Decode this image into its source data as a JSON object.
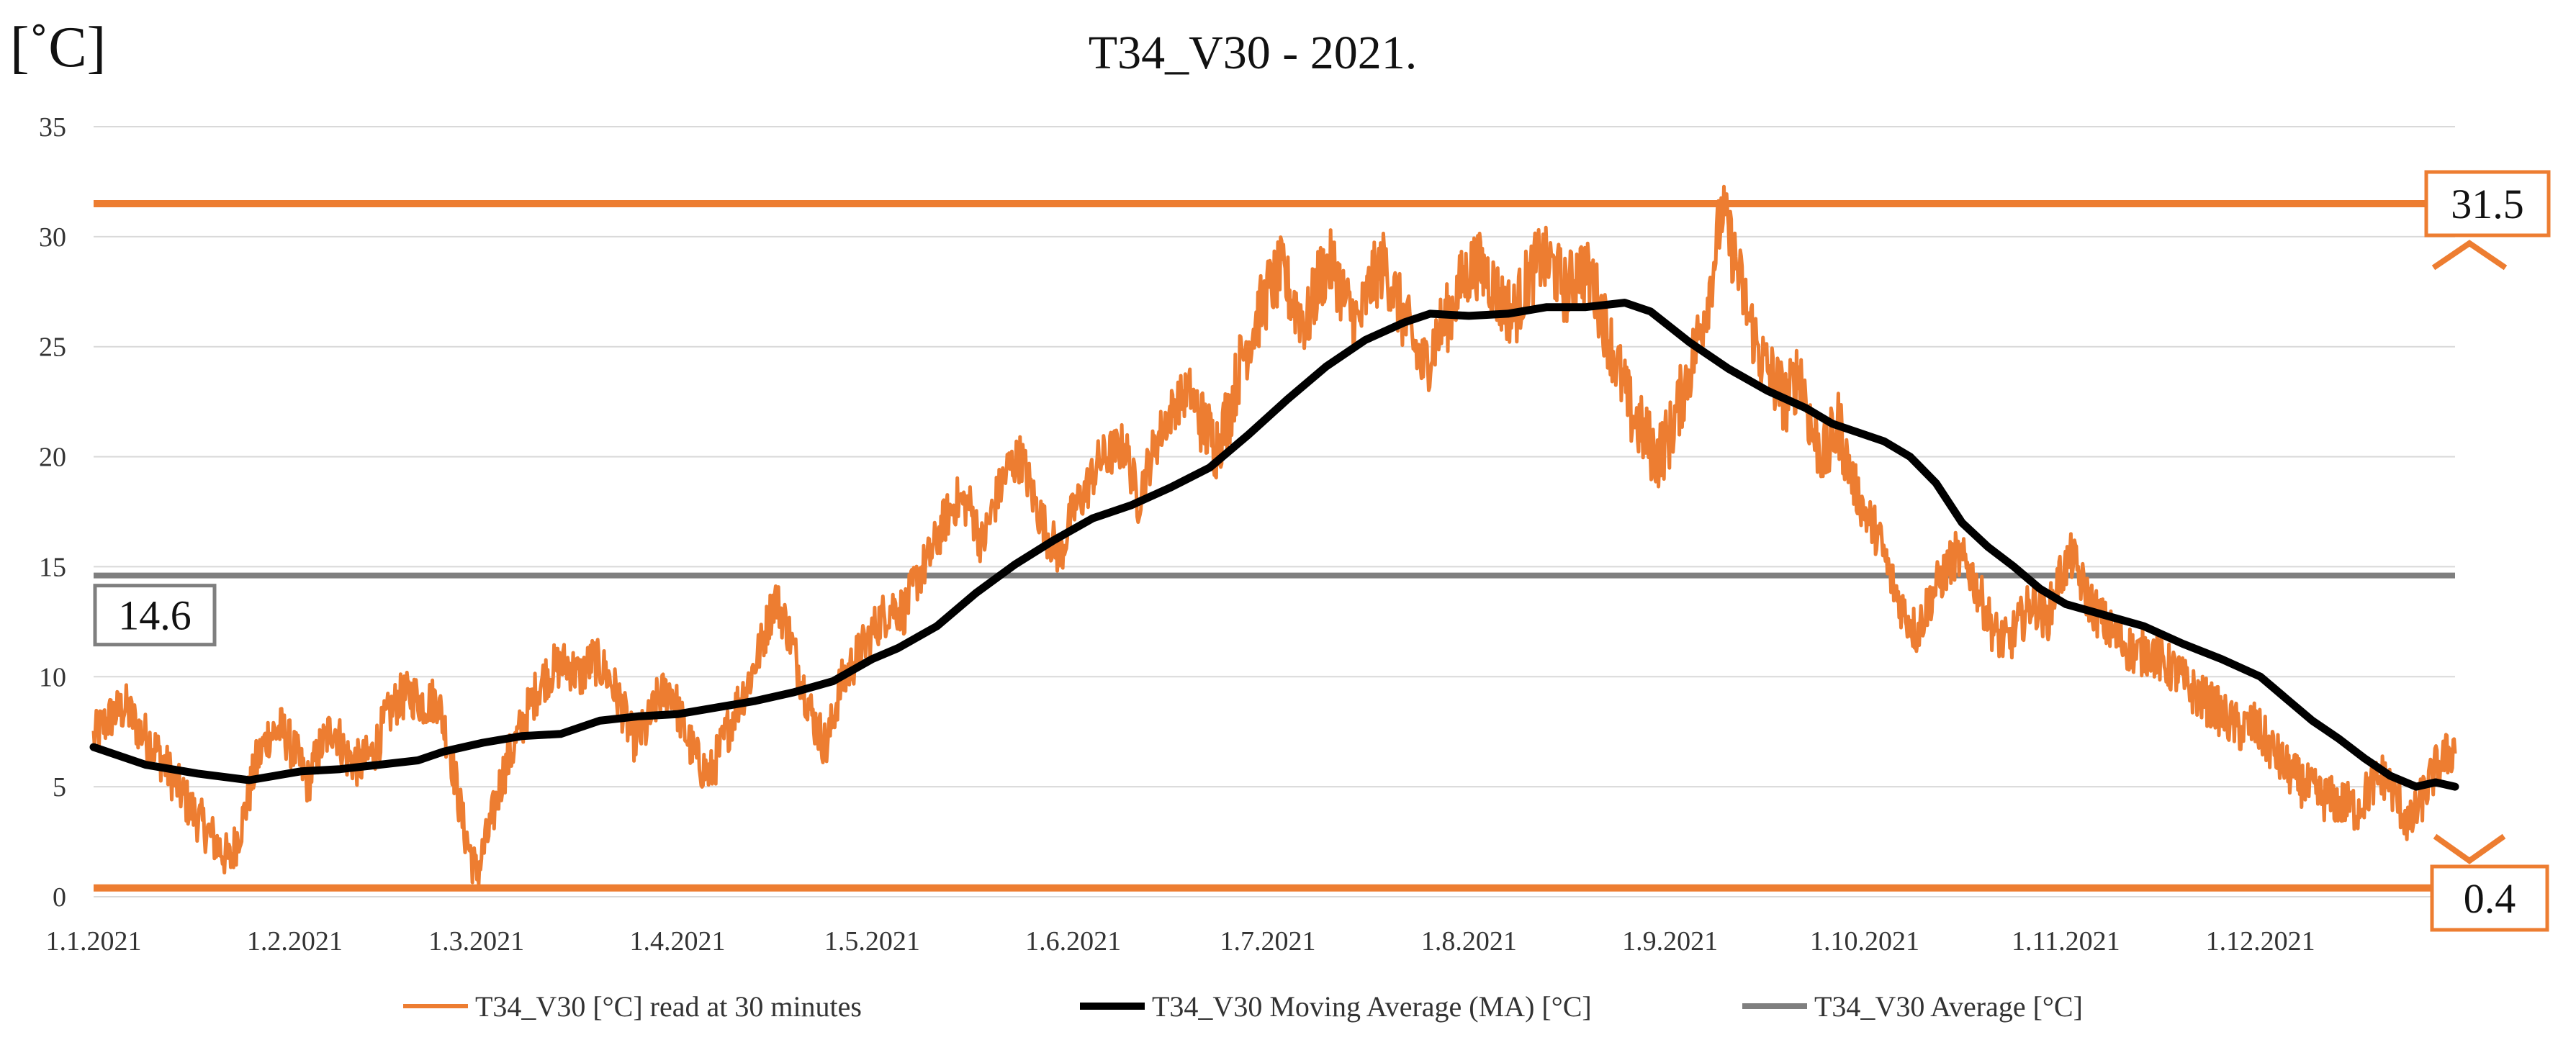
{
  "chart_data": {
    "type": "line",
    "title": "T34_V30 - 2021.",
    "ylabel": "[˚C]",
    "xlabel": "",
    "ylim": [
      0,
      35
    ],
    "yticks": [
      0,
      5,
      10,
      15,
      20,
      25,
      30,
      35
    ],
    "xlim": [
      0,
      364
    ],
    "xtick_labels": [
      "1.1.2021",
      "1.2.2021",
      "1.3.2021",
      "1.4.2021",
      "1.5.2021",
      "1.6.2021",
      "1.7.2021",
      "1.8.2021",
      "1.9.2021",
      "1.10.2021",
      "1.11.2021",
      "1.12.2021"
    ],
    "xtick_days": [
      0,
      31,
      59,
      90,
      120,
      151,
      181,
      212,
      243,
      273,
      304,
      334
    ],
    "grid": true,
    "legend_position": "bottom",
    "colors": {
      "raw": "#ED7D31",
      "ma": "#000000",
      "avg": "#7F7F7F",
      "grid": "#D9D9D9"
    },
    "series": [
      {
        "name": "T34_V30 [°C] read at 30 minutes",
        "kind": "raw",
        "points": [
          [
            0,
            7.2
          ],
          [
            1,
            7.6
          ],
          [
            3,
            8.3
          ],
          [
            5,
            8.6
          ],
          [
            7,
            7.6
          ],
          [
            9,
            7.0
          ],
          [
            11,
            6.0
          ],
          [
            13,
            5.0
          ],
          [
            15,
            4.0
          ],
          [
            17,
            3.2
          ],
          [
            19,
            2.4
          ],
          [
            21,
            1.6
          ],
          [
            23,
            3.5
          ],
          [
            25,
            6.0
          ],
          [
            27,
            7.4
          ],
          [
            29,
            7.6
          ],
          [
            31,
            6.6
          ],
          [
            33,
            5.2
          ],
          [
            35,
            6.8
          ],
          [
            37,
            7.8
          ],
          [
            39,
            6.4
          ],
          [
            41,
            6.0
          ],
          [
            43,
            6.5
          ],
          [
            45,
            8.0
          ],
          [
            47,
            9.0
          ],
          [
            49,
            9.2
          ],
          [
            51,
            8.8
          ],
          [
            53,
            9.0
          ],
          [
            55,
            6.6
          ],
          [
            57,
            3.2
          ],
          [
            59,
            1.0
          ],
          [
            61,
            3.0
          ],
          [
            63,
            5.5
          ],
          [
            65,
            7.0
          ],
          [
            67,
            8.5
          ],
          [
            69,
            9.8
          ],
          [
            71,
            10.4
          ],
          [
            73,
            10.6
          ],
          [
            75,
            10.0
          ],
          [
            77,
            10.8
          ],
          [
            79,
            10.2
          ],
          [
            81,
            9.0
          ],
          [
            83,
            7.2
          ],
          [
            85,
            7.5
          ],
          [
            87,
            9.0
          ],
          [
            89,
            9.5
          ],
          [
            91,
            7.6
          ],
          [
            93,
            6.2
          ],
          [
            95,
            5.5
          ],
          [
            97,
            7.0
          ],
          [
            99,
            8.6
          ],
          [
            101,
            9.8
          ],
          [
            103,
            11.5
          ],
          [
            105,
            13.6
          ],
          [
            107,
            12.2
          ],
          [
            109,
            10.0
          ],
          [
            111,
            8.0
          ],
          [
            113,
            6.8
          ],
          [
            115,
            9.5
          ],
          [
            117,
            10.6
          ],
          [
            119,
            11.5
          ],
          [
            121,
            12.5
          ],
          [
            123,
            13.2
          ],
          [
            125,
            13.0
          ],
          [
            127,
            14.5
          ],
          [
            129,
            15.5
          ],
          [
            131,
            17.0
          ],
          [
            133,
            18.0
          ],
          [
            135,
            17.8
          ],
          [
            137,
            16.0
          ],
          [
            139,
            18.0
          ],
          [
            141,
            19.5
          ],
          [
            143,
            20.0
          ],
          [
            145,
            18.0
          ],
          [
            147,
            16.5
          ],
          [
            149,
            15.5
          ],
          [
            151,
            17.5
          ],
          [
            153,
            18.5
          ],
          [
            155,
            19.8
          ],
          [
            157,
            20.2
          ],
          [
            159,
            20.5
          ],
          [
            161,
            18.0
          ],
          [
            163,
            20.0
          ],
          [
            165,
            21.5
          ],
          [
            167,
            22.5
          ],
          [
            169,
            23.0
          ],
          [
            171,
            21.5
          ],
          [
            173,
            20.5
          ],
          [
            175,
            22.0
          ],
          [
            177,
            24.5
          ],
          [
            179,
            26.0
          ],
          [
            181,
            27.5
          ],
          [
            183,
            28.4
          ],
          [
            185,
            27.0
          ],
          [
            187,
            26.0
          ],
          [
            189,
            28.2
          ],
          [
            191,
            28.8
          ],
          [
            193,
            27.0
          ],
          [
            195,
            26.0
          ],
          [
            197,
            28.0
          ],
          [
            199,
            28.8
          ],
          [
            201,
            27.0
          ],
          [
            203,
            25.5
          ],
          [
            205,
            24.0
          ],
          [
            207,
            25.5
          ],
          [
            209,
            26.5
          ],
          [
            211,
            28.0
          ],
          [
            213,
            28.8
          ],
          [
            215,
            28.2
          ],
          [
            217,
            27.0
          ],
          [
            219,
            26.5
          ],
          [
            221,
            28.0
          ],
          [
            223,
            29.0
          ],
          [
            225,
            28.6
          ],
          [
            227,
            27.5
          ],
          [
            229,
            28.6
          ],
          [
            231,
            28.0
          ],
          [
            233,
            26.0
          ],
          [
            235,
            24.0
          ],
          [
            237,
            22.0
          ],
          [
            239,
            21.0
          ],
          [
            241,
            20.0
          ],
          [
            243,
            21.0
          ],
          [
            245,
            23.0
          ],
          [
            247,
            25.0
          ],
          [
            249,
            27.5
          ],
          [
            251,
            31.2
          ],
          [
            253,
            29.0
          ],
          [
            255,
            26.5
          ],
          [
            257,
            24.5
          ],
          [
            259,
            23.5
          ],
          [
            261,
            22.5
          ],
          [
            263,
            24.0
          ],
          [
            265,
            21.0
          ],
          [
            267,
            20.0
          ],
          [
            269,
            21.5
          ],
          [
            271,
            19.0
          ],
          [
            273,
            17.5
          ],
          [
            275,
            16.5
          ],
          [
            277,
            14.5
          ],
          [
            279,
            13.0
          ],
          [
            281,
            12.0
          ],
          [
            283,
            13.5
          ],
          [
            285,
            14.6
          ],
          [
            287,
            15.5
          ],
          [
            289,
            15.0
          ],
          [
            291,
            13.5
          ],
          [
            293,
            12.0
          ],
          [
            295,
            11.5
          ],
          [
            297,
            12.5
          ],
          [
            299,
            13.5
          ],
          [
            301,
            12.5
          ],
          [
            303,
            14.5
          ],
          [
            305,
            15.5
          ],
          [
            307,
            13.8
          ],
          [
            309,
            12.8
          ],
          [
            311,
            12.0
          ],
          [
            313,
            11.5
          ],
          [
            315,
            11.0
          ],
          [
            317,
            11.2
          ],
          [
            319,
            10.6
          ],
          [
            321,
            10.2
          ],
          [
            323,
            9.5
          ],
          [
            325,
            9.0
          ],
          [
            327,
            8.6
          ],
          [
            329,
            8.0
          ],
          [
            331,
            7.6
          ],
          [
            333,
            7.8
          ],
          [
            335,
            7.0
          ],
          [
            337,
            6.2
          ],
          [
            339,
            5.5
          ],
          [
            341,
            5.0
          ],
          [
            343,
            4.6
          ],
          [
            345,
            4.4
          ],
          [
            347,
            4.2
          ],
          [
            349,
            4.0
          ],
          [
            351,
            5.0
          ],
          [
            353,
            5.5
          ],
          [
            355,
            4.5
          ],
          [
            357,
            3.2
          ],
          [
            359,
            4.5
          ],
          [
            361,
            5.8
          ],
          [
            363,
            6.5
          ],
          [
            364,
            6.8
          ]
        ]
      },
      {
        "name": "T34_V30 Moving Average (MA) [°C]",
        "kind": "ma",
        "points": [
          [
            0,
            6.8
          ],
          [
            8,
            6.0
          ],
          [
            16,
            5.6
          ],
          [
            24,
            5.3
          ],
          [
            32,
            5.7
          ],
          [
            38,
            5.8
          ],
          [
            44,
            6.0
          ],
          [
            50,
            6.2
          ],
          [
            54,
            6.6
          ],
          [
            60,
            7.0
          ],
          [
            66,
            7.3
          ],
          [
            72,
            7.4
          ],
          [
            78,
            8.0
          ],
          [
            84,
            8.2
          ],
          [
            90,
            8.3
          ],
          [
            96,
            8.6
          ],
          [
            102,
            8.9
          ],
          [
            108,
            9.3
          ],
          [
            114,
            9.8
          ],
          [
            120,
            10.8
          ],
          [
            124,
            11.3
          ],
          [
            130,
            12.3
          ],
          [
            136,
            13.8
          ],
          [
            142,
            15.1
          ],
          [
            148,
            16.2
          ],
          [
            154,
            17.2
          ],
          [
            160,
            17.8
          ],
          [
            166,
            18.6
          ],
          [
            172,
            19.5
          ],
          [
            178,
            21.0
          ],
          [
            184,
            22.6
          ],
          [
            190,
            24.1
          ],
          [
            196,
            25.3
          ],
          [
            202,
            26.1
          ],
          [
            206,
            26.5
          ],
          [
            212,
            26.4
          ],
          [
            218,
            26.5
          ],
          [
            224,
            26.8
          ],
          [
            230,
            26.8
          ],
          [
            236,
            27.0
          ],
          [
            240,
            26.6
          ],
          [
            246,
            25.2
          ],
          [
            252,
            24.0
          ],
          [
            258,
            23.0
          ],
          [
            264,
            22.2
          ],
          [
            268,
            21.5
          ],
          [
            272,
            21.1
          ],
          [
            276,
            20.7
          ],
          [
            280,
            20.0
          ],
          [
            284,
            18.8
          ],
          [
            288,
            17.0
          ],
          [
            292,
            15.9
          ],
          [
            296,
            15.0
          ],
          [
            300,
            14.0
          ],
          [
            304,
            13.3
          ],
          [
            310,
            12.8
          ],
          [
            316,
            12.3
          ],
          [
            322,
            11.5
          ],
          [
            328,
            10.8
          ],
          [
            334,
            10.0
          ],
          [
            338,
            9.0
          ],
          [
            342,
            8.0
          ],
          [
            346,
            7.2
          ],
          [
            350,
            6.3
          ],
          [
            354,
            5.5
          ],
          [
            358,
            5.0
          ],
          [
            361,
            5.2
          ],
          [
            364,
            5.0
          ]
        ]
      },
      {
        "name": "T34_V30 Average [°C]",
        "kind": "avg",
        "value": 14.6
      }
    ],
    "reference_lines": [
      {
        "kind": "max",
        "value": 31.5,
        "label": "31.5"
      },
      {
        "kind": "min",
        "value": 0.4,
        "label": "0.4"
      }
    ],
    "annotations": [
      {
        "kind": "avg_box",
        "label": "14.6",
        "value": 14.6
      }
    ]
  }
}
